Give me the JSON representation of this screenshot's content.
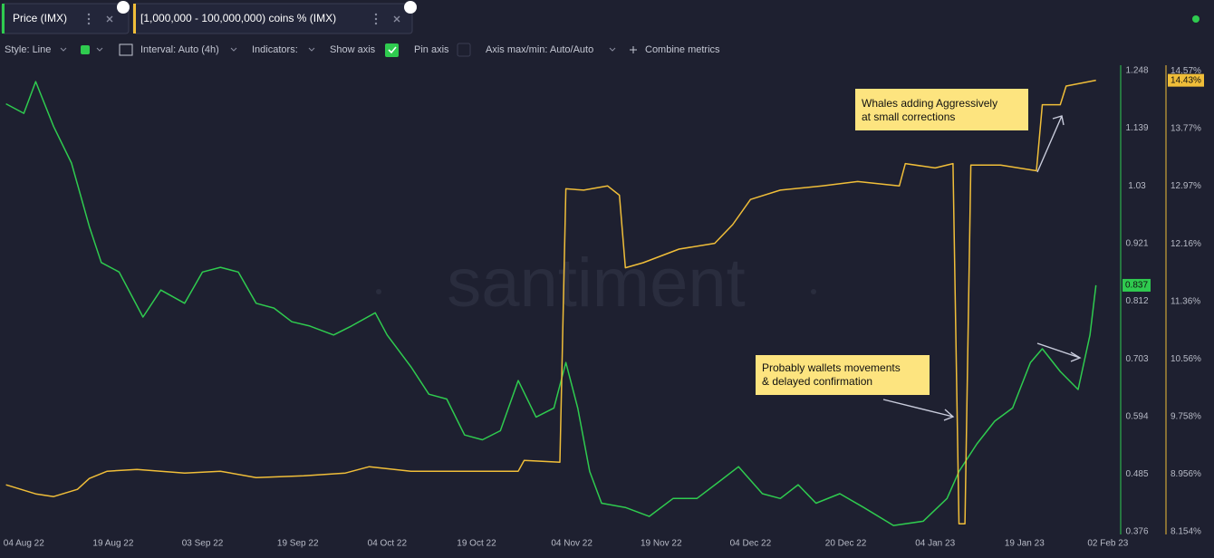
{
  "ui": {
    "toolbar": {
      "style": "Style: Line",
      "interval": "Interval: Auto (4h)",
      "indicators": "Indicators:",
      "show_axis": "Show axis",
      "pin_axis": "Pin axis",
      "axis_minmax": "Axis max/min: Auto/Auto",
      "combine": "Combine metrics"
    },
    "watermark": "santiment"
  },
  "chart_data": {
    "type": "line",
    "xlim": [
      "2022-07-31",
      "2023-02-04"
    ],
    "xticks": [
      {
        "value": "2022-08-04",
        "label": "04 Aug 22"
      },
      {
        "value": "2022-08-19",
        "label": "19 Aug 22"
      },
      {
        "value": "2022-09-03",
        "label": "03 Sep 22"
      },
      {
        "value": "2022-09-19",
        "label": "19 Sep 22"
      },
      {
        "value": "2022-10-04",
        "label": "04 Oct 22"
      },
      {
        "value": "2022-10-19",
        "label": "19 Oct 22"
      },
      {
        "value": "2022-11-04",
        "label": "04 Nov 22"
      },
      {
        "value": "2022-11-19",
        "label": "19 Nov 22"
      },
      {
        "value": "2022-12-04",
        "label": "04 Dec 22"
      },
      {
        "value": "2022-12-20",
        "label": "20 Dec 22"
      },
      {
        "value": "2023-01-04",
        "label": "04 Jan 23"
      },
      {
        "value": "2023-01-19",
        "label": "19 Jan 23"
      },
      {
        "value": "2023-02-02",
        "label": "02 Feb 23"
      }
    ],
    "ylim": [
      0.371,
      1.258
    ],
    "yticks": [
      0.376,
      0.485,
      0.594,
      0.703,
      0.812,
      0.921,
      1.03,
      1.139,
      1.248
    ],
    "y2lim": [
      8.116,
      14.65
    ],
    "y2ticks": [
      {
        "value": 8.154,
        "label": "8.154%"
      },
      {
        "value": 8.956,
        "label": "8.956%"
      },
      {
        "value": 9.758,
        "label": "9.758%"
      },
      {
        "value": 10.56,
        "label": "10.56%"
      },
      {
        "value": 11.36,
        "label": "11.36%"
      },
      {
        "value": 12.16,
        "label": "12.16%"
      },
      {
        "value": 12.97,
        "label": "12.97%"
      },
      {
        "value": 13.77,
        "label": "13.77%"
      },
      {
        "value": 14.57,
        "label": "14.57%"
      }
    ],
    "grid": false,
    "series": [
      {
        "name": "Price (IMX)",
        "color": "#2fcb4f",
        "axis": "y",
        "last_label": "0.837",
        "x": [
          "2022-08-01",
          "2022-08-04",
          "2022-08-06",
          "2022-08-09",
          "2022-08-12",
          "2022-08-15",
          "2022-08-17",
          "2022-08-20",
          "2022-08-24",
          "2022-08-27",
          "2022-08-31",
          "2022-09-03",
          "2022-09-06",
          "2022-09-09",
          "2022-09-12",
          "2022-09-15",
          "2022-09-18",
          "2022-09-21",
          "2022-09-25",
          "2022-09-28",
          "2022-10-02",
          "2022-10-04",
          "2022-10-08",
          "2022-10-11",
          "2022-10-14",
          "2022-10-17",
          "2022-10-20",
          "2022-10-23",
          "2022-10-26",
          "2022-10-29",
          "2022-11-01",
          "2022-11-03",
          "2022-11-05",
          "2022-11-07",
          "2022-11-09",
          "2022-11-13",
          "2022-11-17",
          "2022-11-21",
          "2022-11-25",
          "2022-11-29",
          "2022-12-02",
          "2022-12-06",
          "2022-12-09",
          "2022-12-12",
          "2022-12-15",
          "2022-12-19",
          "2022-12-23",
          "2022-12-28",
          "2023-01-02",
          "2023-01-06",
          "2023-01-08",
          "2023-01-11",
          "2023-01-14",
          "2023-01-17",
          "2023-01-20",
          "2023-01-22",
          "2023-01-25",
          "2023-01-28",
          "2023-01-30",
          "2023-01-31"
        ],
        "values": [
          1.185,
          1.167,
          1.227,
          1.142,
          1.073,
          0.953,
          0.885,
          0.867,
          0.782,
          0.833,
          0.808,
          0.867,
          0.876,
          0.867,
          0.808,
          0.799,
          0.773,
          0.765,
          0.748,
          0.765,
          0.79,
          0.748,
          0.688,
          0.636,
          0.627,
          0.559,
          0.55,
          0.567,
          0.662,
          0.593,
          0.61,
          0.696,
          0.61,
          0.49,
          0.43,
          0.422,
          0.405,
          0.439,
          0.439,
          0.473,
          0.499,
          0.448,
          0.439,
          0.465,
          0.43,
          0.448,
          0.422,
          0.388,
          0.396,
          0.439,
          0.49,
          0.542,
          0.585,
          0.61,
          0.696,
          0.722,
          0.679,
          0.645,
          0.748,
          0.842
        ]
      },
      {
        "name": "[1,000,000 - 100,000,000) coins % (IMX)",
        "color": "#f0be39",
        "axis": "y2",
        "last_label": "14.43%",
        "x": [
          "2022-08-01",
          "2022-08-06",
          "2022-08-09",
          "2022-08-13",
          "2022-08-15",
          "2022-08-18",
          "2022-08-23",
          "2022-08-31",
          "2022-09-06",
          "2022-09-12",
          "2022-09-20",
          "2022-09-27",
          "2022-10-01",
          "2022-10-08",
          "2022-10-18",
          "2022-10-26",
          "2022-10-27",
          "2022-11-02",
          "2022-11-03",
          "2022-11-06",
          "2022-11-10",
          "2022-11-12",
          "2022-11-13",
          "2022-11-16",
          "2022-11-22",
          "2022-11-28",
          "2022-12-01",
          "2022-12-04",
          "2022-12-09",
          "2022-12-16",
          "2022-12-22",
          "2022-12-29",
          "2022-12-30",
          "2023-01-04",
          "2023-01-07",
          "2023-01-08",
          "2023-01-09",
          "2023-01-10",
          "2023-01-15",
          "2023-01-21",
          "2023-01-22",
          "2023-01-25",
          "2023-01-26",
          "2023-01-31"
        ],
        "values": [
          8.807,
          8.681,
          8.643,
          8.744,
          8.896,
          8.996,
          9.022,
          8.971,
          8.996,
          8.908,
          8.933,
          8.971,
          9.059,
          8.996,
          8.996,
          8.996,
          9.148,
          9.122,
          12.93,
          12.91,
          12.97,
          12.84,
          11.83,
          11.9,
          12.09,
          12.17,
          12.43,
          12.78,
          12.91,
          12.97,
          13.03,
          12.97,
          13.28,
          13.22,
          13.28,
          8.265,
          8.265,
          13.26,
          13.26,
          13.18,
          14.1,
          14.1,
          14.36,
          14.44
        ]
      }
    ],
    "annotations": [
      {
        "lines": [
          "Whales adding Aggressively",
          "at small corrections"
        ]
      },
      {
        "lines": [
          "Probably wallets movements",
          "& delayed confirmation"
        ]
      }
    ]
  }
}
